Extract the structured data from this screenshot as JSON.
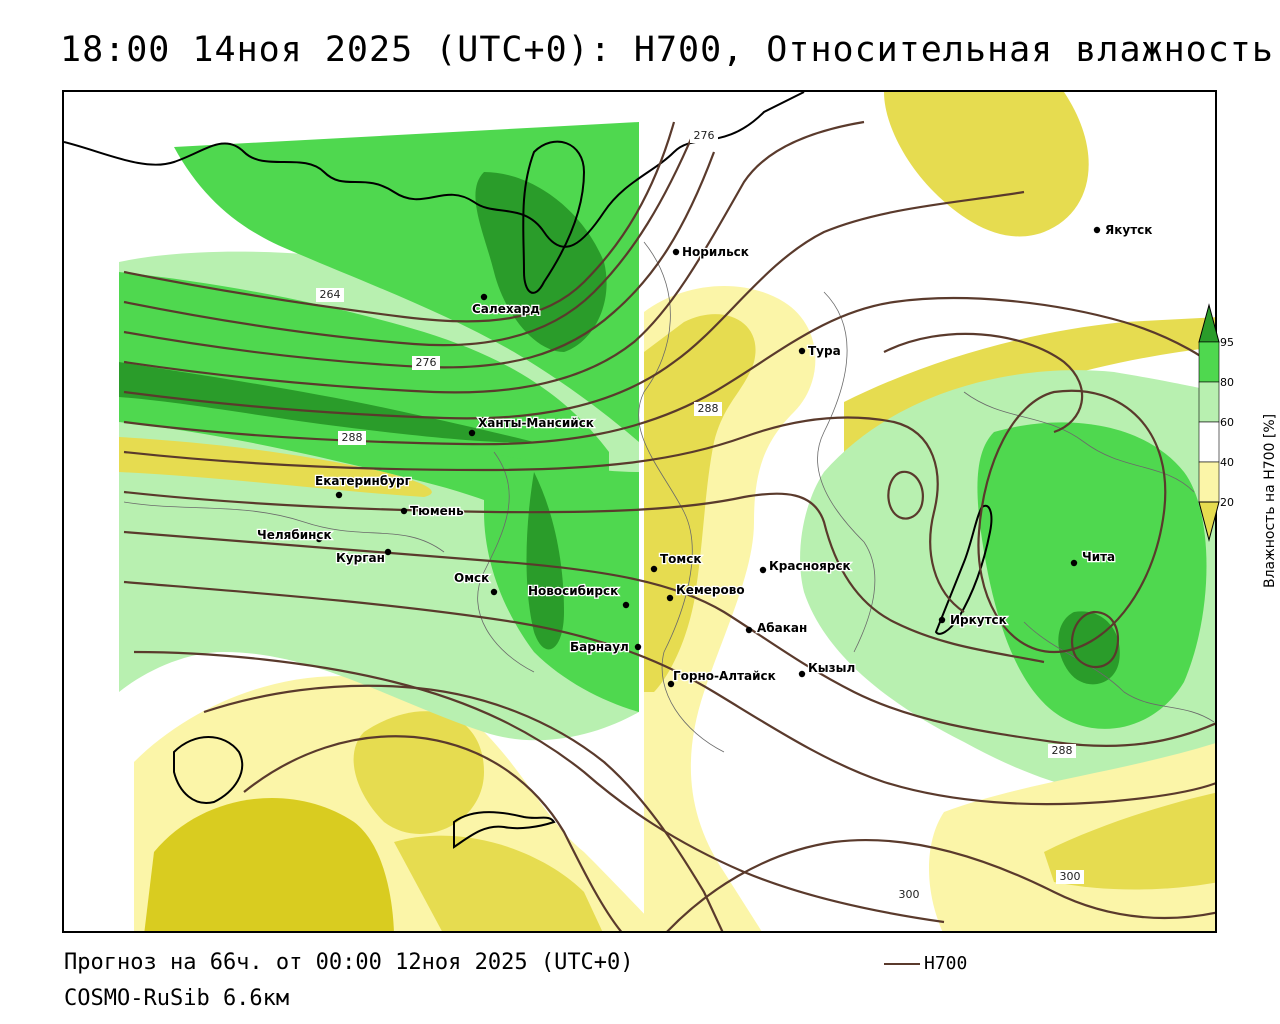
{
  "title": "18:00 14ноя 2025 (UTC+0): H700, Относительная влажность",
  "footer": {
    "forecast": "Прогноз на 66ч. от 00:00 12ноя 2025 (UTC+0)",
    "model": "COSMO-RuSib 6.6км"
  },
  "legend": {
    "line_label": "H700",
    "line_color": "#5a3a2c"
  },
  "colorbar": {
    "title": "Влажность на H700 [%]",
    "ticks": [
      "95",
      "80",
      "60",
      "40",
      "20"
    ],
    "colors": {
      "very_dry": "#c8b900",
      "dry": "#e6dc50",
      "moderately_dry": "#fbf5a8",
      "neutral": "#ffffff",
      "moist": "#b8f0b0",
      "wet": "#4fd84f",
      "very_wet": "#2a9c2a"
    }
  },
  "cities": [
    {
      "name": "Якутск"
    },
    {
      "name": "Норильск"
    },
    {
      "name": "Салехард"
    },
    {
      "name": "Тура"
    },
    {
      "name": "Ханты-Мансийск"
    },
    {
      "name": "Екатеринбург"
    },
    {
      "name": "Тюмень"
    },
    {
      "name": "Челябинск"
    },
    {
      "name": "Курган"
    },
    {
      "name": "Омск"
    },
    {
      "name": "Новосибирск"
    },
    {
      "name": "Томск"
    },
    {
      "name": "Красноярск"
    },
    {
      "name": "Кемерово"
    },
    {
      "name": "Абакан"
    },
    {
      "name": "Иркутск"
    },
    {
      "name": "Чита"
    },
    {
      "name": "Барнаул"
    },
    {
      "name": "Горно-Алтайск"
    },
    {
      "name": "Кызыл"
    }
  ],
  "contour_labels": [
    "276",
    "264",
    "276",
    "288",
    "288",
    "288",
    "300",
    "300"
  ]
}
